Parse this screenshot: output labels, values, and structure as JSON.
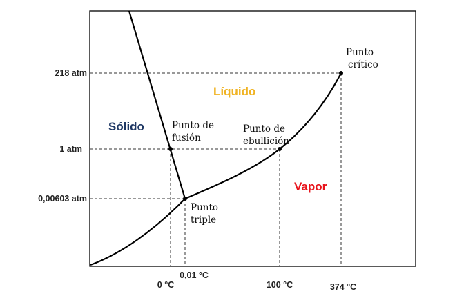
{
  "y_ticks": {
    "critical_pressure": "218 atm",
    "one_atm": "1 atm",
    "triple_pressure": "0,00603 atm"
  },
  "x_ticks": {
    "zero": "0 °C",
    "triple_temp": "0,01 °C",
    "boiling": "100 °C",
    "critical_temp": "374 °C"
  },
  "phases": {
    "solid": {
      "label": "Sólido",
      "color": "#1f3864"
    },
    "liquid": {
      "label": "Líquido",
      "color": "#f0b323"
    },
    "vapor": {
      "label": "Vapor",
      "color": "#e8141c"
    }
  },
  "points": {
    "critical": [
      "Punto",
      "crítico"
    ],
    "fusion": [
      "Punto de",
      "fusión"
    ],
    "boiling": [
      "Punto de",
      "ebullición"
    ],
    "triple": [
      "Punto",
      "triple"
    ]
  }
}
